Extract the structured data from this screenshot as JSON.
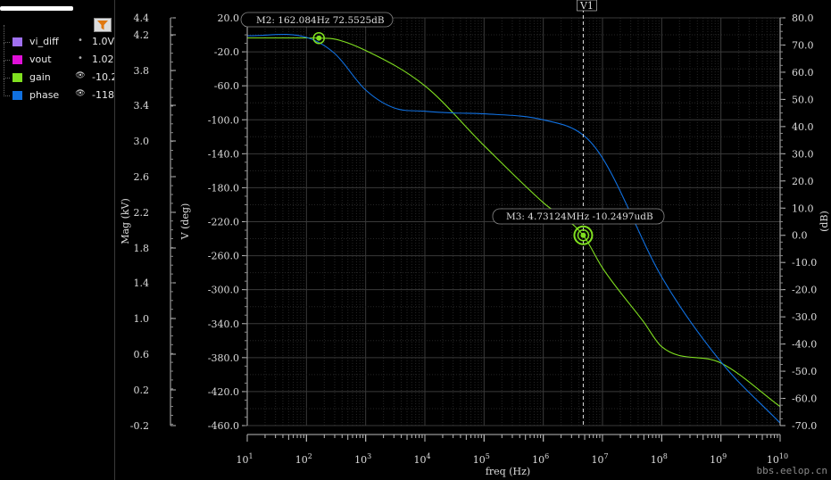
{
  "legend": {
    "items": [
      {
        "name": "vi_diff",
        "color": "#a070f0",
        "visibility": "dot",
        "value": "1.0V"
      },
      {
        "name": "vout",
        "color": "#e010d8",
        "visibility": "dot",
        "value": "1.02"
      },
      {
        "name": "gain",
        "color": "#80e020",
        "visibility": "eye",
        "value": "-10.2"
      },
      {
        "name": "phase",
        "color": "#1070e0",
        "visibility": "eye",
        "value": "-118."
      }
    ]
  },
  "axes": {
    "mag_label": "Mag (kV)",
    "mag_ticks": [
      "4.4",
      "4.2",
      "3.8",
      "3.4",
      "3.0",
      "2.6",
      "2.2",
      "1.8",
      "1.4",
      "1.0",
      "0.6",
      "0.2",
      "-0.2"
    ],
    "v_label": "V (deg)",
    "v_ticks": [
      "20.0",
      "-20.0",
      "-60.0",
      "-100.0",
      "-140.0",
      "-180.0",
      "-220.0",
      "-260.0",
      "-300.0",
      "-340.0",
      "-380.0",
      "-420.0",
      "-460.0"
    ],
    "right_ticks": [
      "80.0",
      "70.0",
      "60.0",
      "50.0",
      "40.0",
      "30.0",
      "20.0",
      "10.0",
      "0.0",
      "-10.0",
      "-20.0",
      "-30.0",
      "-40.0",
      "-50.0",
      "-60.0",
      "-70.0"
    ],
    "right_label": "(dB)",
    "x_label": "freq (Hz)",
    "x_exponents": [
      "1",
      "2",
      "3",
      "4",
      "5",
      "6",
      "7",
      "8",
      "9",
      "10"
    ]
  },
  "markers": {
    "m2": "M2: 162.084Hz 72.5525dB",
    "m3": "M3: 4.73124MHz -10.2497udB",
    "v1": "V1"
  },
  "chart_data": {
    "type": "line",
    "x_scale": "log",
    "xlim": [
      10,
      10000000000
    ],
    "ylim_left_deg": [
      -460,
      20
    ],
    "ylim_right_db": [
      -70,
      80
    ],
    "grid": true,
    "series": [
      {
        "name": "gain",
        "axis": "right_db",
        "color": "#80e020",
        "x": [
          10,
          100,
          162.084,
          300,
          1000,
          10000,
          100000,
          1000000,
          4731240,
          10000000,
          50000000,
          100000000,
          1000000000,
          10000000000
        ],
        "y": [
          72.6,
          72.6,
          72.55,
          72.2,
          68,
          55,
          33,
          12,
          0,
          -12,
          -32,
          -41,
          -47,
          -63
        ]
      },
      {
        "name": "phase",
        "axis": "left_deg",
        "color": "#1070e0",
        "x": [
          10,
          100,
          300,
          1000,
          3000,
          10000,
          30000,
          100000,
          1000000,
          4731240,
          10000000,
          100000000,
          1000000000,
          10000000000
        ],
        "y": [
          -1,
          -3,
          -22,
          -65,
          -86,
          -90,
          -92,
          -93,
          -100,
          -118,
          -145,
          -285,
          -385,
          -457
        ]
      }
    ],
    "markers": [
      {
        "label": "M2",
        "x": 162.084,
        "y": 72.5525
      },
      {
        "label": "M3",
        "x": 4731240,
        "y": -1.02497e-05
      },
      {
        "label": "V1",
        "x": 4731240
      }
    ]
  }
}
